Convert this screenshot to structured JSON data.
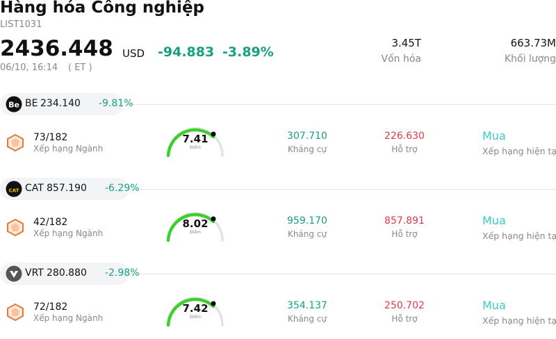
{
  "header": {
    "title": "Hàng hóa Công nghiệp",
    "code": "LIST1031",
    "price": "2436.448",
    "currency": "USD",
    "change": "-94.883",
    "change_pct": "-3.89%",
    "date": "06/10, 16:14",
    "timezone": "( ET )",
    "stats": [
      {
        "value": "3.45T",
        "label": "Vốn hóa"
      },
      {
        "value": "663.73M",
        "label": "Khối lượng"
      }
    ]
  },
  "items": [
    {
      "logo": "Be",
      "ticker": "BE",
      "price": "234.140",
      "change_pct": "-9.81%",
      "rank": "73/182",
      "rank_label": "Xếp hạng Ngành",
      "score": "7.41",
      "score_label": "Điểm",
      "resistance": "307.710",
      "resistance_label": "Kháng cự",
      "support": "226.630",
      "support_label": "Hỗ trợ",
      "rating": "Mua",
      "rating_label": "Xếp hạng hiện tại"
    },
    {
      "logo": "CAT",
      "ticker": "CAT",
      "price": "857.190",
      "change_pct": "-6.29%",
      "rank": "42/182",
      "rank_label": "Xếp hạng Ngành",
      "score": "8.02",
      "score_label": "Điểm",
      "resistance": "959.170",
      "resistance_label": "Kháng cự",
      "support": "857.891",
      "support_label": "Hỗ trợ",
      "rating": "Mua",
      "rating_label": "Xếp hạng hiện tại"
    },
    {
      "ticker": "VRT",
      "price": "280.880",
      "change_pct": "-2.98%",
      "rank": "72/182",
      "rank_label": "Xếp hạng Ngành",
      "score": "7.42",
      "score_label": "Điểm",
      "resistance": "354.137",
      "resistance_label": "Kháng cự",
      "support": "250.702",
      "support_label": "Hỗ trợ",
      "rating": "Mua",
      "rating_label": "Xếp hạng hiện tại"
    }
  ]
}
